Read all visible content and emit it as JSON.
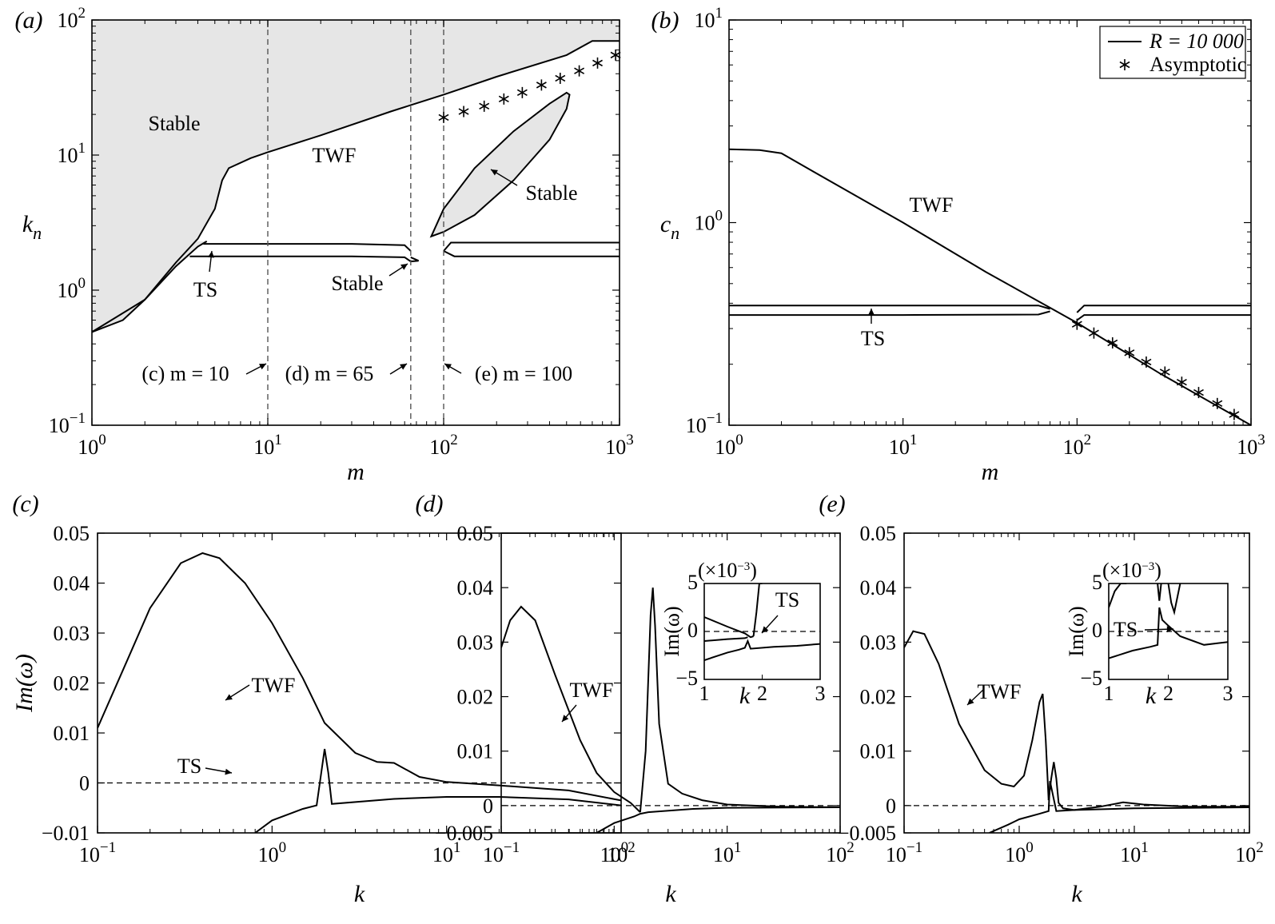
{
  "chart_data": [
    {
      "id": "a",
      "panel_label": "(a)",
      "type": "line",
      "xscale": "log",
      "yscale": "log",
      "xlim": [
        1,
        1000
      ],
      "ylim": [
        0.1,
        100
      ],
      "xticks": [
        "10^0",
        "10^1",
        "10^2",
        "10^3"
      ],
      "yticks": [
        "10^-1",
        "10^0",
        "10^1",
        "10^2"
      ],
      "xlabel": "m",
      "ylabel": "k_n",
      "annotations": {
        "stable_top": "Stable",
        "twf": "TWF",
        "stable_island": "Stable",
        "ts": "TS",
        "stable_bottom": "Stable",
        "slice_c": "(c)  m = 10",
        "slice_d": "(d)  m = 65",
        "slice_e": "(e)  m = 100"
      },
      "vlines": [
        10,
        65,
        100
      ],
      "series": [
        {
          "role": "upper_boundary",
          "x": [
            1,
            2,
            3,
            4,
            5,
            5.5,
            6,
            8,
            10,
            20,
            50,
            100,
            200,
            500,
            700,
            1000
          ],
          "y": [
            0.49,
            0.85,
            1.6,
            2.4,
            4.0,
            6.5,
            8.0,
            9.5,
            10.5,
            14,
            21,
            28,
            38,
            55,
            70,
            70
          ]
        },
        {
          "role": "lower_boundary",
          "x": [
            1,
            1.5,
            2,
            3,
            4,
            4.5
          ],
          "y": [
            0.49,
            0.6,
            0.85,
            1.5,
            2.1,
            2.3
          ]
        },
        {
          "role": "ts_upper",
          "x": [
            4.3,
            10,
            30,
            60,
            65
          ],
          "y": [
            2.2,
            2.2,
            2.2,
            2.15,
            1.95
          ]
        },
        {
          "role": "ts_lower",
          "x": [
            3.6,
            10,
            30,
            60,
            65,
            72,
            65
          ],
          "y": [
            1.78,
            1.78,
            1.78,
            1.75,
            1.63,
            1.65,
            1.75
          ]
        },
        {
          "role": "ts_upper_right",
          "x": [
            100,
            110,
            200,
            1000
          ],
          "y": [
            1.95,
            2.25,
            2.25,
            2.25
          ]
        },
        {
          "role": "ts_lower_right",
          "x": [
            100,
            115,
            200,
            1000
          ],
          "y": [
            1.95,
            1.78,
            1.78,
            1.78
          ]
        },
        {
          "role": "island",
          "x": [
            85,
            100,
            150,
            250,
            400,
            500,
            520,
            500,
            400,
            250,
            150,
            100,
            85
          ],
          "y": [
            2.5,
            4.0,
            8.0,
            15,
            24,
            29,
            28,
            22,
            13,
            6.5,
            3.6,
            2.7,
            2.5
          ]
        },
        {
          "name": "Asymptotic",
          "style": "asterisk",
          "x": [
            100,
            130,
            170,
            220,
            280,
            360,
            460,
            590,
            750,
            950
          ],
          "y": [
            19,
            21,
            23,
            26,
            29,
            33,
            37,
            42,
            48,
            55
          ]
        }
      ]
    },
    {
      "id": "b",
      "panel_label": "(b)",
      "type": "line",
      "xscale": "log",
      "yscale": "log",
      "xlim": [
        1,
        1000
      ],
      "ylim": [
        0.1,
        10
      ],
      "xticks": [
        "10^0",
        "10^1",
        "10^2",
        "10^3"
      ],
      "yticks": [
        "10^-1",
        "10^0",
        "10^1"
      ],
      "xlabel": "m",
      "ylabel": "c_n",
      "legend": {
        "location": "top-right",
        "entries": [
          "R = 10 000",
          "Asymptotic"
        ]
      },
      "annotations": {
        "twf": "TWF",
        "ts": "TS"
      },
      "series": [
        {
          "name": "R = 10 000",
          "role": "twf",
          "x": [
            1,
            1.5,
            2,
            3,
            10,
            30,
            70,
            100,
            300,
            1000
          ],
          "y": [
            2.3,
            2.28,
            2.2,
            1.8,
            1.0,
            0.57,
            0.38,
            0.32,
            0.18,
            0.1
          ]
        },
        {
          "role": "ts_upper",
          "x": [
            1,
            10,
            60,
            70
          ],
          "y": [
            0.39,
            0.39,
            0.39,
            0.375
          ]
        },
        {
          "role": "ts_lower",
          "x": [
            1,
            10,
            60,
            70
          ],
          "y": [
            0.35,
            0.35,
            0.352,
            0.365
          ]
        },
        {
          "role": "ts_upper_right",
          "x": [
            100,
            110,
            1000
          ],
          "y": [
            0.36,
            0.39,
            0.39
          ]
        },
        {
          "role": "ts_lower_right",
          "x": [
            100,
            110,
            1000
          ],
          "y": [
            0.33,
            0.35,
            0.35
          ]
        },
        {
          "name": "Asymptotic",
          "style": "asterisk",
          "x": [
            100,
            125,
            160,
            200,
            250,
            320,
            400,
            500,
            640,
            800
          ],
          "y": [
            0.315,
            0.285,
            0.255,
            0.228,
            0.205,
            0.183,
            0.163,
            0.145,
            0.128,
            0.113
          ]
        }
      ]
    },
    {
      "id": "c",
      "panel_label": "(c)",
      "type": "line",
      "xscale": "log",
      "xlim": [
        0.1,
        100
      ],
      "ylim": [
        -0.01,
        0.05
      ],
      "xticks": [
        "10^-1",
        "10^0",
        "10^1",
        "10^2"
      ],
      "yticks": [
        "−0.01",
        "0",
        "0.01",
        "0.02",
        "0.03",
        "0.04",
        "0.05"
      ],
      "xlabel": "k",
      "ylabel": "Im(ω)",
      "annotations": {
        "twf": "TWF",
        "ts": "TS"
      },
      "series": [
        {
          "role": "twf",
          "x": [
            0.1,
            0.15,
            0.2,
            0.3,
            0.4,
            0.5,
            0.7,
            1,
            1.5,
            2,
            3,
            4,
            5,
            7,
            10,
            20,
            50,
            100
          ],
          "y": [
            0.011,
            0.025,
            0.035,
            0.044,
            0.046,
            0.045,
            0.04,
            0.032,
            0.021,
            0.012,
            0.006,
            0.0042,
            0.004,
            0.0012,
            0.0002,
            -0.0005,
            -0.0015,
            -0.0035
          ]
        },
        {
          "role": "ts",
          "x": [
            0.8,
            1,
            1.5,
            1.8,
            2.0,
            2.1,
            2.2,
            5,
            10,
            20,
            50,
            100
          ],
          "y": [
            -0.01,
            -0.0075,
            -0.0052,
            -0.0045,
            0.0068,
            0.002,
            -0.0042,
            -0.0032,
            -0.0028,
            -0.0028,
            -0.0033,
            -0.0045
          ]
        }
      ],
      "hline": 0
    },
    {
      "id": "d",
      "panel_label": "(d)",
      "type": "line",
      "xscale": "log",
      "xlim": [
        0.1,
        100
      ],
      "ylim": [
        -0.005,
        0.05
      ],
      "xticks": [
        "10^-1",
        "10^0",
        "10^1",
        "10^2"
      ],
      "yticks": [
        "−0.005",
        "0",
        "0.01",
        "0.02",
        "0.03",
        "0.04",
        "0.05"
      ],
      "xlabel": "k",
      "annotations": {
        "twf": "TWF"
      },
      "series": [
        {
          "role": "twf",
          "x": [
            0.1,
            0.12,
            0.15,
            0.2,
            0.3,
            0.5,
            0.7,
            1,
            1.4,
            1.7
          ],
          "y": [
            0.029,
            0.034,
            0.0365,
            0.034,
            0.024,
            0.012,
            0.006,
            0.0025,
            0.0005,
            -0.0012
          ]
        },
        {
          "role": "peak",
          "x": [
            1.7,
            1.9,
            2.1,
            2.2,
            2.3,
            2.5,
            3,
            4,
            6,
            10,
            30,
            100
          ],
          "y": [
            -0.0012,
            0.01,
            0.035,
            0.04,
            0.033,
            0.015,
            0.004,
            0.0022,
            0.001,
            0.0002,
            -0.0002,
            -0.0003
          ]
        },
        {
          "role": "ts",
          "x": [
            0.7,
            1,
            1.5,
            1.7,
            2,
            5,
            10,
            100
          ],
          "y": [
            -0.005,
            -0.0032,
            -0.002,
            -0.0015,
            -0.0012,
            -0.0006,
            -0.0004,
            -0.0003
          ]
        }
      ],
      "hline": 0,
      "inset": {
        "xlim": [
          1,
          3
        ],
        "ylim": [
          -5,
          5
        ],
        "multiplier": "(×10^−3)",
        "xticks": [
          "1",
          "2",
          "3"
        ],
        "yticks": [
          "−5",
          "0",
          "5"
        ],
        "xlabel": "k",
        "ylabel": "Im(ω)",
        "annotation": "TS",
        "series": [
          {
            "x": [
              1,
              1.4,
              1.7,
              1.8,
              1.85
            ],
            "y": [
              1.5,
              0.5,
              -0.2,
              -0.6,
              -0.5
            ]
          },
          {
            "x": [
              1.85,
              1.9,
              1.95,
              2.0
            ],
            "y": [
              -0.5,
              2.0,
              5.0,
              5.0
            ]
          },
          {
            "x": [
              1,
              1.4,
              1.6,
              1.7,
              1.75,
              1.8,
              2.2,
              2.6,
              3
            ],
            "y": [
              -3.0,
              -2.2,
              -1.9,
              -1.7,
              -1.0,
              -1.8,
              -1.6,
              -1.5,
              -1.3
            ]
          },
          {
            "x": [
              1,
              1.4,
              1.7,
              1.75
            ],
            "y": [
              -1.0,
              -0.8,
              -0.7,
              -0.6
            ]
          }
        ]
      }
    },
    {
      "id": "e",
      "panel_label": "(e)",
      "type": "line",
      "xscale": "log",
      "xlim": [
        0.1,
        100
      ],
      "ylim": [
        -0.005,
        0.05
      ],
      "xticks": [
        "10^-1",
        "10^0",
        "10^1",
        "10^2"
      ],
      "yticks": [
        "−0.005",
        "0",
        "0.01",
        "0.02",
        "0.03",
        "0.04",
        "0.05"
      ],
      "xlabel": "k",
      "annotations": {
        "twf": "TWF"
      },
      "series": [
        {
          "role": "twf",
          "x": [
            0.1,
            0.12,
            0.15,
            0.2,
            0.3,
            0.5,
            0.7,
            0.9,
            1.1,
            1.3,
            1.5,
            1.6,
            1.7,
            1.8
          ],
          "y": [
            0.029,
            0.032,
            0.0315,
            0.026,
            0.015,
            0.0065,
            0.004,
            0.0035,
            0.0055,
            0.012,
            0.019,
            0.0205,
            0.012,
            0.001
          ]
        },
        {
          "role": "peak2",
          "x": [
            1.8,
            1.9,
            2.0,
            2.1,
            2.2,
            2.4,
            3,
            5,
            8,
            12,
            30,
            100
          ],
          "y": [
            0.001,
            0.005,
            0.008,
            0.005,
            0.0005,
            -0.0005,
            -0.0008,
            -0.0002,
            0.0006,
            0.0002,
            -0.0002,
            -0.0002
          ]
        },
        {
          "role": "ts",
          "x": [
            0.55,
            0.8,
            1,
            1.5,
            1.8,
            1.85,
            2.1,
            3,
            10,
            100
          ],
          "y": [
            -0.005,
            -0.0035,
            -0.0025,
            -0.0015,
            -0.001,
            0.0045,
            -0.001,
            -0.0008,
            -0.0005,
            -0.0003
          ]
        }
      ],
      "hline": 0,
      "inset": {
        "xlim": [
          1,
          3
        ],
        "ylim": [
          -5,
          5
        ],
        "multiplier": "(×10^−3)",
        "xticks": [
          "1",
          "2",
          "3"
        ],
        "yticks": [
          "−5",
          "0",
          "5"
        ],
        "xlabel": "k",
        "ylabel": "Im(ω)",
        "annotation": "TS",
        "series": [
          {
            "x": [
              1,
              1.1,
              1.2,
              1.3
            ],
            "y": [
              2.5,
              4.2,
              5.0,
              5.0
            ]
          },
          {
            "x": [
              1,
              1.4,
              1.7,
              1.82,
              1.85,
              1.9,
              2.0,
              2.2,
              2.6,
              3
            ],
            "y": [
              -2.8,
              -2.0,
              -1.6,
              -1.4,
              2.5,
              1.2,
              0.6,
              -0.5,
              -1.4,
              -1.1
            ]
          },
          {
            "x": [
              1.82,
              1.85,
              1.88
            ],
            "y": [
              5.0,
              3.2,
              5.0
            ]
          },
          {
            "x": [
              2.0,
              2.05,
              2.1,
              2.2
            ],
            "y": [
              5.0,
              3.0,
              2.0,
              5.0
            ]
          }
        ]
      }
    }
  ]
}
